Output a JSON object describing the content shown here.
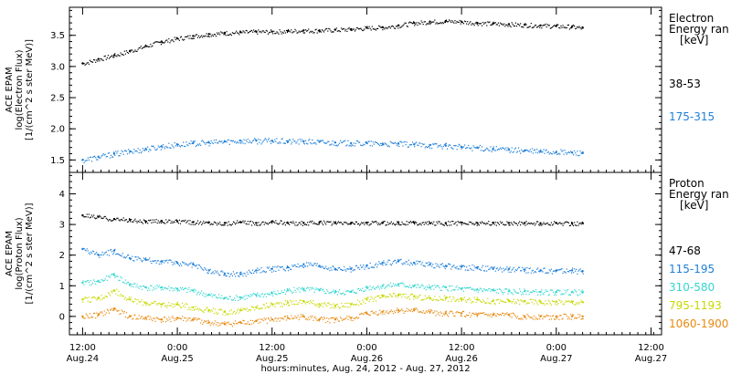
{
  "chart_data": [
    {
      "type": "scatter",
      "panel": "electron",
      "ylabel": [
        "ACE EPAM",
        "log(Electron Flux)",
        "[1/(cm^2 s ster MeV)]"
      ],
      "ylim": [
        1.3,
        3.95
      ],
      "yticks": [
        "1.5",
        "2.0",
        "2.5",
        "3.0",
        "3.5"
      ],
      "legend_title": [
        "Electron",
        "Energy ran",
        "[keV]"
      ],
      "series": [
        {
          "name": "38-53",
          "color": "#000000",
          "x": [
            0,
            6,
            12,
            18,
            24,
            30,
            36,
            42,
            48,
            54,
            60,
            66,
            72,
            78,
            84,
            90,
            96,
            102,
            108,
            114,
            120,
            126,
            132,
            138,
            144,
            150,
            156,
            162,
            168,
            174,
            180,
            186,
            190
          ],
          "y": [
            3.05,
            3.12,
            3.18,
            3.25,
            3.33,
            3.4,
            3.45,
            3.49,
            3.52,
            3.54,
            3.55,
            3.56,
            3.56,
            3.57,
            3.58,
            3.58,
            3.59,
            3.6,
            3.62,
            3.63,
            3.66,
            3.7,
            3.72,
            3.73,
            3.72,
            3.7,
            3.69,
            3.68,
            3.67,
            3.66,
            3.65,
            3.64,
            3.62
          ]
        },
        {
          "name": "175-315",
          "color": "#1e7fd8",
          "x": [
            0,
            6,
            12,
            18,
            24,
            30,
            36,
            42,
            48,
            54,
            60,
            66,
            72,
            78,
            84,
            90,
            96,
            102,
            108,
            114,
            120,
            126,
            132,
            138,
            144,
            150,
            156,
            162,
            168,
            174,
            180,
            186,
            190
          ],
          "y": [
            1.5,
            1.55,
            1.6,
            1.64,
            1.68,
            1.72,
            1.75,
            1.77,
            1.78,
            1.8,
            1.81,
            1.81,
            1.81,
            1.8,
            1.8,
            1.79,
            1.78,
            1.77,
            1.77,
            1.76,
            1.76,
            1.75,
            1.74,
            1.73,
            1.71,
            1.7,
            1.68,
            1.67,
            1.65,
            1.64,
            1.63,
            1.62,
            1.62
          ]
        }
      ]
    },
    {
      "type": "scatter",
      "panel": "proton",
      "ylabel": [
        "ACE EPAM",
        "log(Proton Flux)",
        "[1/(cm^2 s ster MeV)]"
      ],
      "ylim": [
        -0.6,
        4.7
      ],
      "yticks": [
        "0",
        "1",
        "2",
        "3",
        "4"
      ],
      "legend_title": [
        "Proton",
        "Energy ran",
        "[keV]"
      ],
      "series": [
        {
          "name": "47-68",
          "color": "#000000",
          "x": [
            0,
            6,
            12,
            18,
            24,
            30,
            36,
            42,
            48,
            54,
            60,
            66,
            72,
            78,
            84,
            90,
            96,
            102,
            108,
            114,
            120,
            126,
            132,
            138,
            144,
            150,
            156,
            162,
            168,
            174,
            180,
            186,
            190
          ],
          "y": [
            3.3,
            3.25,
            3.18,
            3.15,
            3.1,
            3.12,
            3.1,
            3.08,
            3.07,
            3.05,
            3.08,
            3.05,
            3.1,
            3.05,
            3.05,
            3.07,
            3.05,
            3.05,
            3.06,
            3.05,
            3.07,
            3.06,
            3.05,
            3.05,
            3.06,
            3.05,
            3.05,
            3.05,
            3.05,
            3.04,
            3.05,
            3.04,
            3.05
          ]
        },
        {
          "name": "115-195",
          "color": "#1e7fd8",
          "x": [
            0,
            6,
            12,
            18,
            24,
            30,
            36,
            42,
            48,
            54,
            60,
            66,
            72,
            78,
            84,
            90,
            96,
            102,
            108,
            114,
            120,
            126,
            132,
            138,
            144,
            150,
            156,
            162,
            168,
            174,
            180,
            186,
            190
          ],
          "y": [
            2.2,
            2.0,
            2.15,
            1.9,
            1.85,
            1.8,
            1.75,
            1.7,
            1.5,
            1.4,
            1.38,
            1.5,
            1.55,
            1.6,
            1.7,
            1.65,
            1.55,
            1.55,
            1.65,
            1.75,
            1.8,
            1.75,
            1.7,
            1.65,
            1.62,
            1.6,
            1.55,
            1.55,
            1.52,
            1.5,
            1.5,
            1.5,
            1.48
          ]
        },
        {
          "name": "310-580",
          "color": "#33d6cf",
          "x": [
            0,
            6,
            12,
            18,
            24,
            30,
            36,
            42,
            48,
            54,
            60,
            66,
            72,
            78,
            84,
            90,
            96,
            102,
            108,
            114,
            120,
            126,
            132,
            138,
            144,
            150,
            156,
            162,
            168,
            174,
            180,
            186,
            190
          ],
          "y": [
            1.1,
            1.15,
            1.35,
            1.05,
            0.95,
            0.95,
            0.9,
            0.85,
            0.7,
            0.6,
            0.62,
            0.7,
            0.75,
            0.85,
            0.9,
            0.85,
            0.8,
            0.8,
            0.95,
            1.0,
            1.05,
            1.0,
            0.95,
            0.95,
            0.9,
            0.88,
            0.85,
            0.82,
            0.82,
            0.8,
            0.8,
            0.8,
            0.78
          ]
        },
        {
          "name": "795-1193",
          "color": "#c8d800",
          "x": [
            0,
            6,
            12,
            18,
            24,
            30,
            36,
            42,
            48,
            54,
            60,
            66,
            72,
            78,
            84,
            90,
            96,
            102,
            108,
            114,
            120,
            126,
            132,
            138,
            144,
            150,
            156,
            162,
            168,
            174,
            180,
            186,
            190
          ],
          "y": [
            0.55,
            0.6,
            0.85,
            0.55,
            0.45,
            0.4,
            0.4,
            0.3,
            0.2,
            0.15,
            0.2,
            0.3,
            0.4,
            0.45,
            0.5,
            0.4,
            0.35,
            0.4,
            0.55,
            0.65,
            0.7,
            0.65,
            0.6,
            0.6,
            0.55,
            0.55,
            0.5,
            0.5,
            0.5,
            0.48,
            0.48,
            0.48,
            0.47
          ]
        },
        {
          "name": "1060-1900",
          "color": "#e88a10",
          "x": [
            0,
            6,
            12,
            18,
            24,
            30,
            36,
            42,
            48,
            54,
            60,
            66,
            72,
            78,
            84,
            90,
            96,
            102,
            108,
            114,
            120,
            126,
            132,
            138,
            144,
            150,
            156,
            162,
            168,
            174,
            180,
            186,
            190
          ],
          "y": [
            0.0,
            0.05,
            0.25,
            0.0,
            -0.05,
            -0.1,
            -0.05,
            -0.1,
            -0.2,
            -0.25,
            -0.2,
            -0.15,
            -0.1,
            -0.05,
            0.0,
            -0.1,
            -0.1,
            -0.05,
            0.1,
            0.15,
            0.2,
            0.2,
            0.15,
            0.1,
            0.1,
            0.05,
            0.05,
            0.05,
            0.0,
            0.0,
            0.0,
            0.0,
            0.0
          ]
        }
      ]
    }
  ],
  "x_axis": {
    "xlim": [
      -5,
      220
    ],
    "ticks": [
      {
        "x": 0,
        "top": "12:00",
        "bottom": "Aug.24"
      },
      {
        "x": 36,
        "top": "0:00",
        "bottom": "Aug.25"
      },
      {
        "x": 72,
        "top": "12:00",
        "bottom": "Aug.25"
      },
      {
        "x": 108,
        "top": "0:00",
        "bottom": "Aug.26"
      },
      {
        "x": 144,
        "top": "12:00",
        "bottom": "Aug.26"
      },
      {
        "x": 180,
        "top": "0:00",
        "bottom": "Aug.27"
      },
      {
        "x": 216,
        "top": "12:00",
        "bottom": "Aug.27"
      }
    ],
    "xlabel": "hours:minutes, Aug. 24, 2012 - Aug. 27, 2012"
  },
  "colors": {
    "frame": "#000000",
    "background": "#ffffff"
  }
}
